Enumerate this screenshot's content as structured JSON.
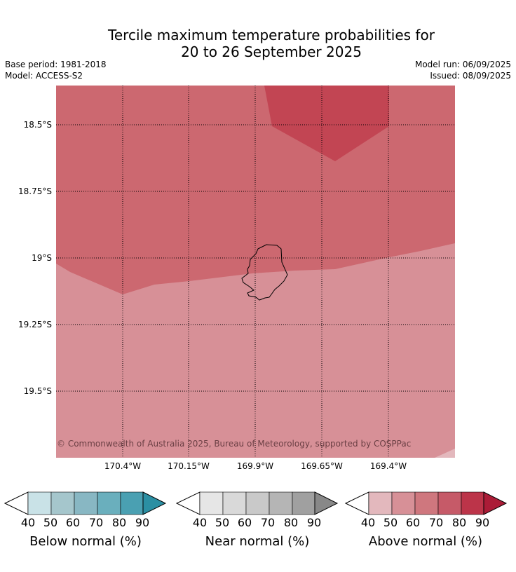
{
  "title_line1": "Tercile maximum temperature probabilities for",
  "title_line2": "20 to 26 September 2025",
  "meta": {
    "base_period": "Base period: 1981-2018",
    "model": "Model: ACCESS-S2",
    "model_run": "Model run: 06/09/2025",
    "issued": "Issued: 08/09/2025"
  },
  "map": {
    "y_labels": [
      "18.5°S",
      "18.75°S",
      "19°S",
      "19.25°S",
      "19.5°S"
    ],
    "x_labels": [
      "170.4°W",
      "170.15°W",
      "169.9°W",
      "169.65°W",
      "169.4°W"
    ],
    "copyright": "© Commonwealth of Australia 2025, Bureau of Meteorology, supported by COSPPac",
    "region_colors": {
      "above_70_80": "#cc6870",
      "above_80_90": "#c24553",
      "above_50_60": "#d79097",
      "above_40_50": "#e3b8bd"
    }
  },
  "colorbars": [
    {
      "label": "Below normal (%)",
      "ticks": [
        "40",
        "50",
        "60",
        "70",
        "80",
        "90"
      ],
      "colors": [
        "#c9e2e7",
        "#a5c6cc",
        "#88b7c3",
        "#6aafbd",
        "#4aa0b2",
        "#2b8fa3"
      ]
    },
    {
      "label": "Near normal (%)",
      "ticks": [
        "40",
        "50",
        "60",
        "70",
        "80",
        "90"
      ],
      "colors": [
        "#e6e6e6",
        "#d9d9d9",
        "#c9c9c9",
        "#b5b5b5",
        "#a0a0a0",
        "#888888"
      ]
    },
    {
      "label": "Above normal (%)",
      "ticks": [
        "40",
        "50",
        "60",
        "70",
        "80",
        "90"
      ],
      "colors": [
        "#e3b8bd",
        "#d79097",
        "#cf777e",
        "#c65a68",
        "#bc3449",
        "#ab1c37"
      ]
    }
  ]
}
